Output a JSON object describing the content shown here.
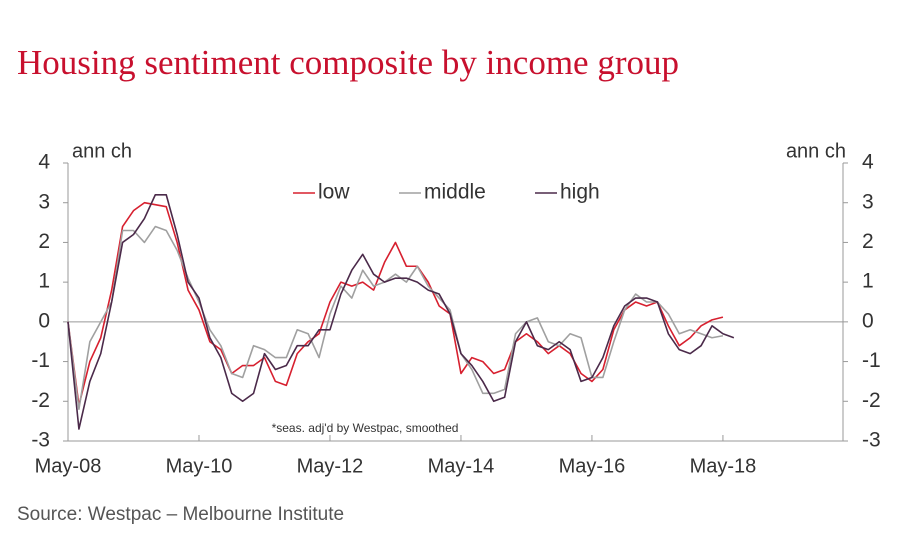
{
  "chart_data": {
    "type": "line",
    "title": "Housing sentiment composite by income group",
    "ylabel": "ann ch",
    "y2label": "ann ch",
    "annotation": "*seas. adj'd by Westpac, smoothed",
    "source": "Source: Westpac – Melbourne Institute",
    "categories": [
      "May-08",
      null,
      null,
      null,
      null,
      null,
      null,
      null,
      null,
      null,
      null,
      null,
      "May-10",
      null,
      null,
      null,
      null,
      null,
      null,
      null,
      null,
      null,
      null,
      null,
      "May-12",
      null,
      null,
      null,
      null,
      null,
      null,
      null,
      null,
      null,
      null,
      null,
      "May-14",
      null,
      null,
      null,
      null,
      null,
      null,
      null,
      null,
      null,
      null,
      null,
      "May-16",
      null,
      null,
      null,
      null,
      null,
      null,
      null,
      null,
      null,
      null,
      null,
      "May-18",
      null,
      null,
      null,
      null,
      null,
      null,
      null,
      null,
      null,
      null,
      null
    ],
    "ylim": [
      -3,
      4
    ],
    "yticks": [
      -3,
      -2,
      -1,
      0,
      1,
      2,
      3,
      4
    ],
    "y2lim": [
      -3,
      4
    ],
    "y2ticks": [
      -3,
      -2,
      -1,
      0,
      1,
      2,
      3,
      4
    ],
    "series": [
      {
        "name": "low",
        "color": "#d7202f",
        "values": [
          0,
          -2.1,
          -1.0,
          -0.4,
          0.8,
          2.4,
          2.8,
          3.0,
          2.95,
          2.9,
          2.0,
          0.8,
          0.3,
          -0.5,
          -0.7,
          -1.3,
          -1.1,
          -1.1,
          -0.9,
          -1.5,
          -1.6,
          -0.8,
          -0.5,
          -0.3,
          0.5,
          1.0,
          0.9,
          1.0,
          0.8,
          1.5,
          2.0,
          1.4,
          1.4,
          1.0,
          0.4,
          0.2,
          -1.3,
          -0.9,
          -1.0,
          -1.3,
          -1.2,
          -0.5,
          -0.3,
          -0.5,
          -0.8,
          -0.6,
          -0.8,
          -1.3,
          -1.5,
          -1.2,
          -0.2,
          0.3,
          0.5,
          0.4,
          0.5,
          -0.1,
          -0.6,
          -0.4,
          -0.1,
          0.05,
          0.12,
          null,
          null,
          null,
          null,
          null,
          null,
          null,
          null,
          null,
          null,
          null
        ]
      },
      {
        "name": "middle",
        "color": "#a0a0a0",
        "values": [
          0,
          -2.2,
          -0.5,
          0.0,
          0.5,
          2.3,
          2.3,
          2.0,
          2.4,
          2.3,
          1.8,
          1.1,
          0.5,
          -0.2,
          -0.6,
          -1.3,
          -1.4,
          -0.6,
          -0.7,
          -0.9,
          -0.9,
          -0.2,
          -0.3,
          -0.9,
          0.2,
          0.9,
          0.6,
          1.3,
          0.9,
          1.0,
          1.2,
          1.0,
          1.4,
          0.9,
          0.6,
          0.3,
          -0.8,
          -1.2,
          -1.8,
          -1.8,
          -1.7,
          -0.3,
          0.0,
          0.1,
          -0.5,
          -0.6,
          -0.3,
          -0.4,
          -1.4,
          -1.4,
          -0.5,
          0.3,
          0.7,
          0.5,
          0.5,
          0.2,
          -0.3,
          -0.2,
          -0.3,
          -0.4,
          -0.35,
          null,
          null,
          null,
          null,
          null,
          null,
          null,
          null,
          null,
          null,
          null
        ]
      },
      {
        "name": "high",
        "color": "#4b2a4a",
        "values": [
          0,
          -2.7,
          -1.5,
          -0.8,
          0.5,
          2.0,
          2.2,
          2.6,
          3.2,
          3.2,
          2.2,
          1.0,
          0.6,
          -0.4,
          -0.9,
          -1.8,
          -2.0,
          -1.8,
          -0.8,
          -1.2,
          -1.1,
          -0.6,
          -0.6,
          -0.2,
          -0.2,
          0.7,
          1.3,
          1.7,
          1.2,
          1.0,
          1.1,
          1.1,
          1.0,
          0.8,
          0.7,
          0.2,
          -0.8,
          -1.1,
          -1.5,
          -2.0,
          -1.9,
          -0.5,
          0.0,
          -0.6,
          -0.7,
          -0.5,
          -0.7,
          -1.5,
          -1.4,
          -0.9,
          -0.1,
          0.4,
          0.6,
          0.6,
          0.5,
          -0.3,
          -0.7,
          -0.8,
          -0.6,
          -0.1,
          -0.3,
          -0.4,
          null,
          null,
          null,
          null,
          null,
          null,
          null,
          null,
          null,
          null
        ]
      }
    ],
    "legend": "top"
  }
}
